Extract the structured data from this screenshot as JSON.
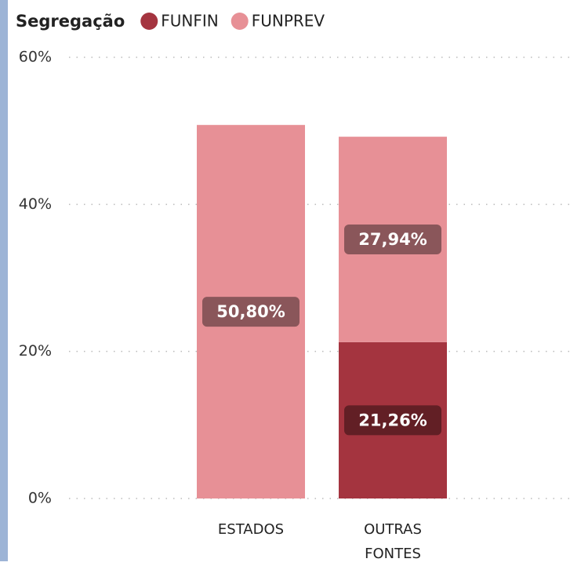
{
  "chart_data": {
    "type": "stacked_bar",
    "legend_title": "Segregação",
    "categories": [
      "ESTADOS",
      "OUTRAS FONTES"
    ],
    "series": [
      {
        "name": "FUNFIN",
        "color": "#a4343f",
        "values": [
          null,
          21.26
        ],
        "value_labels": [
          null,
          "21,26%"
        ]
      },
      {
        "name": "FUNPREV",
        "color": "#e79096",
        "values": [
          50.8,
          27.94
        ],
        "value_labels": [
          "50,80%",
          "27,94%"
        ]
      }
    ],
    "ylim": [
      0,
      60
    ],
    "yticks": [
      {
        "value": 0,
        "label": "0%"
      },
      {
        "value": 20,
        "label": "20%"
      },
      {
        "value": 40,
        "label": "40%"
      },
      {
        "value": 60,
        "label": "60%"
      }
    ],
    "grid": true
  }
}
